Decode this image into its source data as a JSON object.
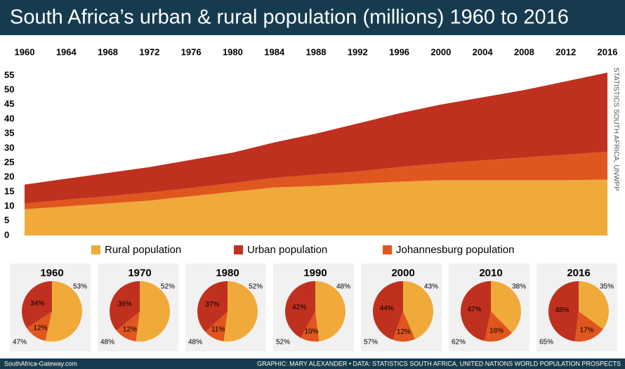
{
  "chart_data": [
    {
      "type": "area",
      "title": "South Africa’s urban & rural population (millions) 1960 to 2016",
      "source": "STATISTICS SOUTH AFRICA, UNWPP",
      "x": [
        1960,
        1964,
        1968,
        1972,
        1976,
        1980,
        1984,
        1988,
        1992,
        1996,
        2000,
        2004,
        2008,
        2012,
        2016
      ],
      "series": [
        {
          "name": "Rural population",
          "color": "#f0aa3a",
          "values": [
            9,
            10,
            11,
            12,
            13.5,
            15,
            16.5,
            17,
            17.8,
            18.5,
            19,
            19,
            19,
            19,
            19.2
          ]
        },
        {
          "name": "Johannesburg population",
          "color": "#e0561f",
          "values": [
            2,
            2.3,
            2.5,
            2.8,
            2.8,
            3,
            3.3,
            4,
            4.2,
            5,
            5.8,
            6.8,
            7.8,
            8.8,
            9.6
          ]
        },
        {
          "name": "Urban population",
          "color": "#c0301f",
          "values": [
            6.5,
            7.2,
            8,
            8.7,
            9.7,
            10.5,
            12.2,
            14,
            16.5,
            18.5,
            20.2,
            21.7,
            23.2,
            25.2,
            27.2
          ]
        }
      ],
      "legend_order": [
        "Rural population",
        "Urban population",
        "Johannesburg population"
      ],
      "stacked": true,
      "xlim": [
        1960,
        2016
      ],
      "xticks": [
        1960,
        1964,
        1968,
        1972,
        1976,
        1980,
        1984,
        1988,
        1992,
        1996,
        2000,
        2004,
        2008,
        2012,
        2016
      ],
      "ylim": [
        0,
        58
      ],
      "yticks": [
        0,
        5,
        10,
        15,
        20,
        25,
        30,
        35,
        40,
        45,
        50,
        55
      ],
      "grid": false
    },
    {
      "type": "pie",
      "title": "1960",
      "categories": [
        "Rural",
        "Johannesburg",
        "Urban"
      ],
      "values": [
        53,
        12,
        34
      ],
      "value_labels": [
        "53%",
        "12%",
        "34%"
      ],
      "total": 47,
      "total_label": "47%"
    },
    {
      "type": "pie",
      "title": "1970",
      "categories": [
        "Rural",
        "Johannesburg",
        "Urban"
      ],
      "values": [
        52,
        12,
        36
      ],
      "value_labels": [
        "52%",
        "12%",
        "36%"
      ],
      "total": 48,
      "total_label": "48%"
    },
    {
      "type": "pie",
      "title": "1980",
      "categories": [
        "Rural",
        "Johannesburg",
        "Urban"
      ],
      "values": [
        52,
        11,
        37
      ],
      "value_labels": [
        "52%",
        "11%",
        "37%"
      ],
      "total": 48,
      "total_label": "48%"
    },
    {
      "type": "pie",
      "title": "1990",
      "categories": [
        "Rural",
        "Johannesburg",
        "Urban"
      ],
      "values": [
        48,
        10,
        42
      ],
      "value_labels": [
        "48%",
        "10%",
        "42%"
      ],
      "total": 52,
      "total_label": "52%"
    },
    {
      "type": "pie",
      "title": "2000",
      "categories": [
        "Rural",
        "Johannesburg",
        "Urban"
      ],
      "values": [
        43,
        12,
        44
      ],
      "value_labels": [
        "43%",
        "12%",
        "44%"
      ],
      "total": 57,
      "total_label": "57%"
    },
    {
      "type": "pie",
      "title": "2010",
      "categories": [
        "Rural",
        "Johannesburg",
        "Urban"
      ],
      "values": [
        38,
        16,
        47
      ],
      "value_labels": [
        "38%",
        "16%",
        "47%"
      ],
      "total": 62,
      "total_label": "62%"
    },
    {
      "type": "pie",
      "title": "2016",
      "categories": [
        "Rural",
        "Johannesburg",
        "Urban"
      ],
      "values": [
        35,
        17,
        48
      ],
      "value_labels": [
        "35%",
        "17%",
        "48%"
      ],
      "total": 65,
      "total_label": "65%"
    }
  ],
  "footer": {
    "left": "SouthAfrica-Gateway.com",
    "right": "GRAPHIC: MARY ALEXANDER • DATA: STATISTICS SOUTH AFRICA, UNITED NATIONS WORLD POPULATION PROSPECTS"
  }
}
